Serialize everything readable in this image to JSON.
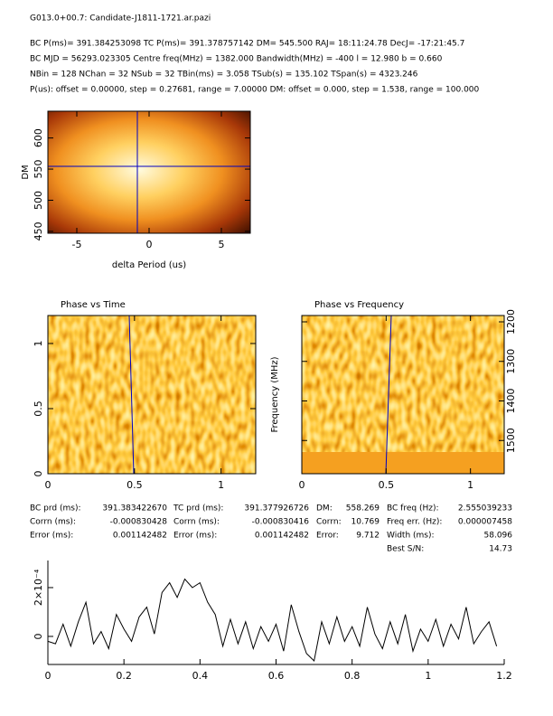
{
  "header": {
    "title": "G013.0+00.7: Candidate-J1811-1721.ar.pazi",
    "lines": [
      "BC P(ms)= 391.384253098 TC P(ms)= 391.378757142 DM= 545.500 RAJ= 18:11:24.78 DecJ= -17:21:45.7",
      "BC MJD = 56293.023305 Centre freq(MHz) = 1382.000 Bandwidth(MHz) = -400 l = 12.980 b = 0.660",
      "NBin = 128 NChan = 32 NSub = 32 TBin(ms) = 3.058 TSub(s) = 135.102 TSpan(s) = 4323.246",
      "P(us): offset = 0.00000, step = 0.27681, range = 7.00000 DM: offset = 0.000, step = 1.538, range = 100.000"
    ]
  },
  "results": {
    "rows": [
      [
        "BC prd (ms):",
        "391.383422670",
        "TC prd (ms):",
        "391.377926726",
        "DM:",
        "558.269",
        "BC freq (Hz):",
        "2.555039233"
      ],
      [
        "Corrn (ms):",
        "-0.000830428",
        "Corrn (ms):",
        "-0.000830416",
        "Corrn:",
        "10.769",
        "Freq err. (Hz):",
        "0.000007458"
      ],
      [
        "Error (ms):",
        "0.001142482",
        "Error (ms):",
        "0.001142482",
        "Error:",
        "9.712",
        "Width (ms):",
        "58.096"
      ],
      [
        "Best S/N:",
        "14.73"
      ]
    ]
  },
  "chart_data": [
    {
      "type": "heatmap",
      "x_label": "delta Period (us)",
      "y_label": "DM",
      "xlim": [
        -7,
        7
      ],
      "xticks": [
        -5,
        0,
        5
      ],
      "ylim": [
        447,
        643
      ],
      "yticks": [
        450,
        500,
        550,
        600
      ]
    },
    {
      "type": "heatmap",
      "title": "Phase vs Time",
      "xlim": [
        0,
        1.2
      ],
      "xticks": [
        0,
        0.5,
        1
      ],
      "ylim": [
        0,
        1.215
      ],
      "yticks": [
        0,
        0.5,
        1
      ]
    },
    {
      "type": "heatmap",
      "title": "Phase vs Frequency",
      "y_label": "Frequency (MHz)",
      "xlim": [
        0,
        1.2
      ],
      "xticks": [
        0,
        0.5,
        1
      ],
      "ylim": [
        1584,
        1184
      ],
      "yticks": [
        1200,
        1300,
        1400,
        1500
      ]
    },
    {
      "type": "line",
      "color": "#000000",
      "xlim": [
        0,
        1.2
      ],
      "xticks": [
        0,
        0.2,
        0.4,
        0.6,
        0.8,
        1,
        1.2
      ],
      "ylim": [
        -0.000115,
        0.000311
      ],
      "yticks": [
        0,
        {
          "value": 0.0002,
          "label": "2×10⁻⁴"
        }
      ],
      "x": [
        0,
        0.02,
        0.04,
        0.06,
        0.08,
        0.1,
        0.12,
        0.14,
        0.16,
        0.18,
        0.2,
        0.22,
        0.24,
        0.26,
        0.28,
        0.3,
        0.32,
        0.34,
        0.36,
        0.38,
        0.4,
        0.42,
        0.44,
        0.46,
        0.48,
        0.5,
        0.52,
        0.54,
        0.56,
        0.58,
        0.6,
        0.62,
        0.64,
        0.66,
        0.68,
        0.7,
        0.72,
        0.74,
        0.76,
        0.78,
        0.8,
        0.82,
        0.84,
        0.86,
        0.88,
        0.9,
        0.92,
        0.94,
        0.96,
        0.98,
        1,
        1.02,
        1.04,
        1.06,
        1.08,
        1.1,
        1.12,
        1.14,
        1.16,
        1.18
      ],
      "values": [
        -2e-05,
        -3e-05,
        5e-05,
        -4e-05,
        6e-05,
        0.00014,
        -3e-05,
        2e-05,
        -5e-05,
        9e-05,
        3e-05,
        -2e-05,
        8e-05,
        0.00012,
        1e-05,
        0.00018,
        0.00022,
        0.00016,
        0.000235,
        0.0002,
        0.00022,
        0.00014,
        9e-05,
        -4e-05,
        7e-05,
        -3e-05,
        6e-05,
        -5e-05,
        4e-05,
        -2e-05,
        5e-05,
        -6e-05,
        0.00013,
        2e-05,
        -7e-05,
        -0.0001,
        6e-05,
        -3e-05,
        8e-05,
        -2e-05,
        4e-05,
        -4e-05,
        0.00012,
        1e-05,
        -5e-05,
        6e-05,
        -3e-05,
        9e-05,
        -6e-05,
        3e-05,
        -2e-05,
        7e-05,
        -4e-05,
        5e-05,
        -1e-05,
        0.00012,
        -3e-05,
        2e-05,
        6e-05,
        -4e-05
      ]
    }
  ]
}
